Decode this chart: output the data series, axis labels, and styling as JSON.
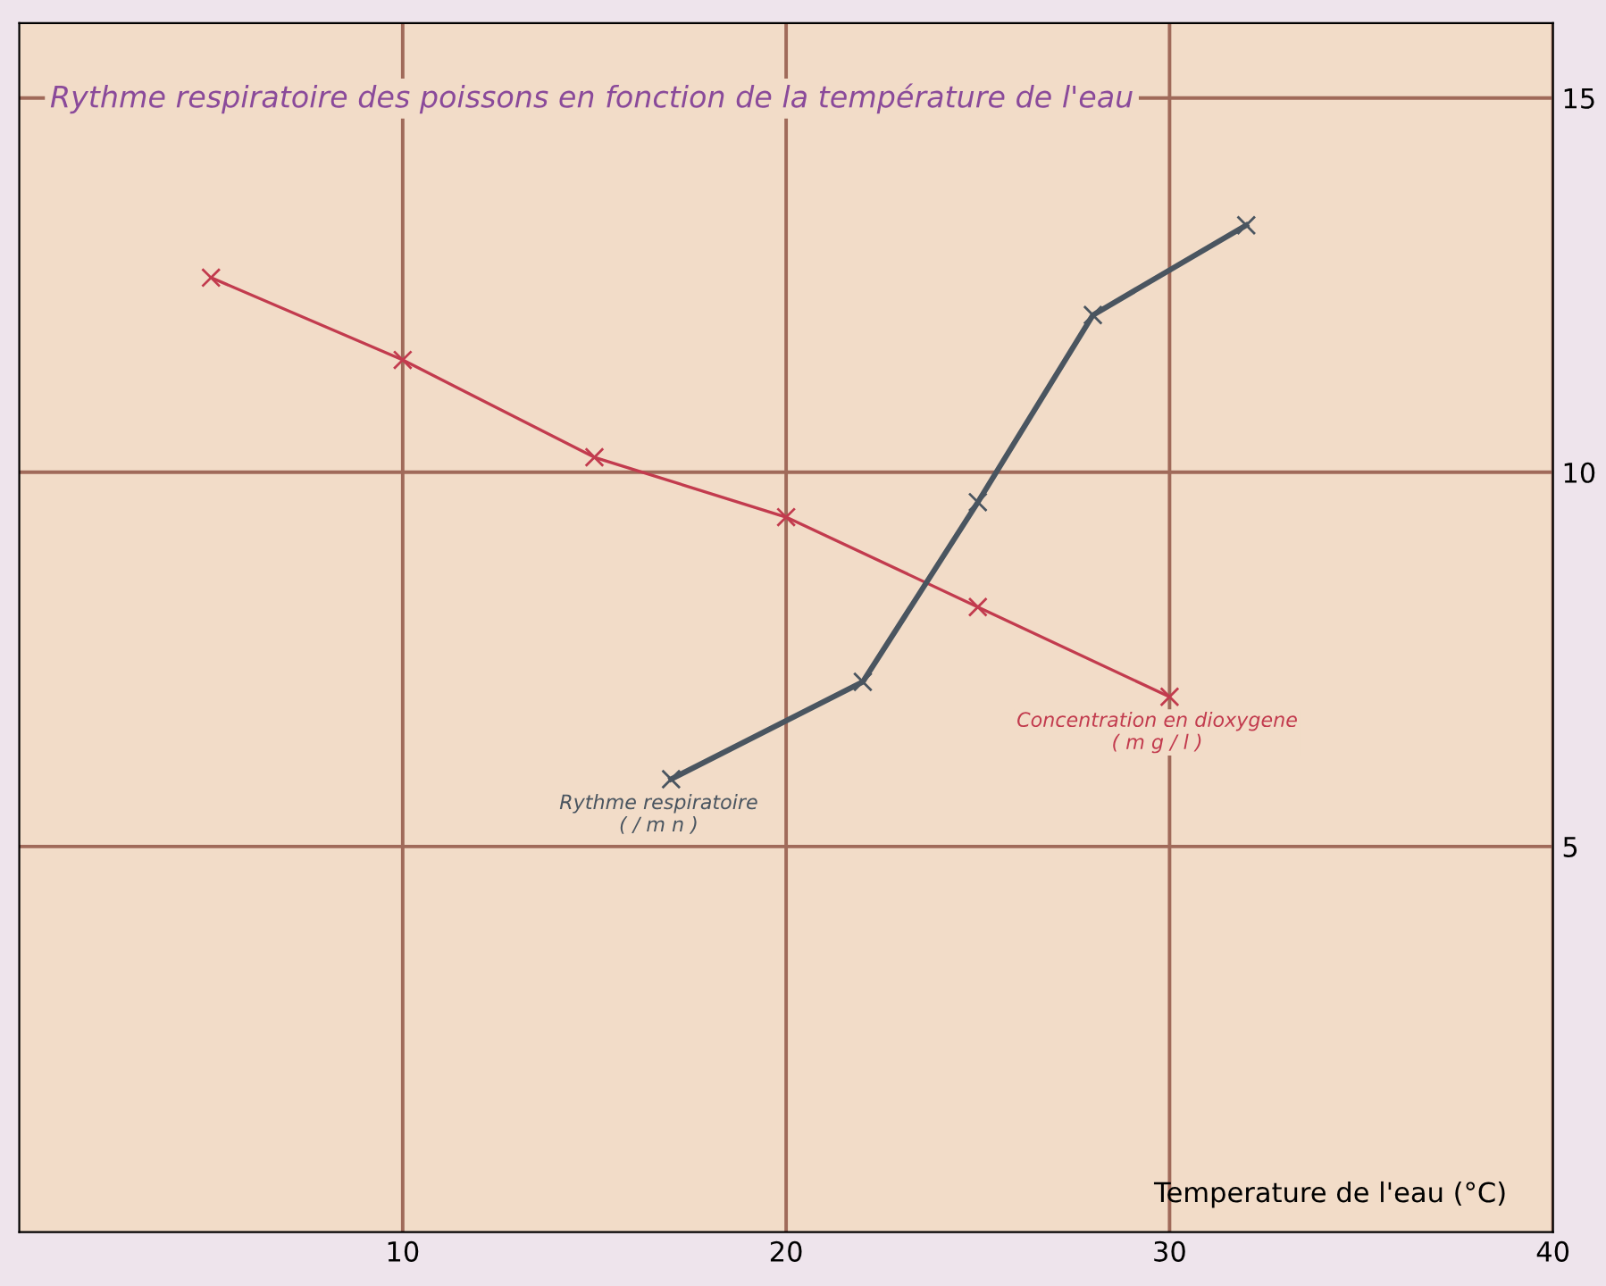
{
  "chart_data": {
    "type": "line",
    "title": "Rythme respiratoire des poissons en fonction de la température de l'eau",
    "xlabel": "Temperature de l'eau (°C)",
    "series": [
      {
        "name": "Concentration en dioxygene\n( m g / l )",
        "color": "#c23b4e",
        "x": [
          5,
          10,
          15,
          20,
          25,
          30
        ],
        "values": [
          12.6,
          11.5,
          10.2,
          9.4,
          8.2,
          7.0
        ]
      },
      {
        "name": "Rythme respiratoire\n( / m n )",
        "color": "#4a5560",
        "x": [
          17,
          22,
          25,
          28,
          32
        ],
        "values": [
          5.9,
          7.2,
          9.6,
          12.1,
          13.3
        ]
      }
    ],
    "xlim": [
      0,
      40
    ],
    "ylim": [
      -0.15,
      16
    ],
    "xticks": [
      10,
      20,
      30,
      40
    ],
    "yticks": [
      5,
      10,
      15
    ],
    "grid": true,
    "marker": "cross",
    "line_style": "solid"
  }
}
